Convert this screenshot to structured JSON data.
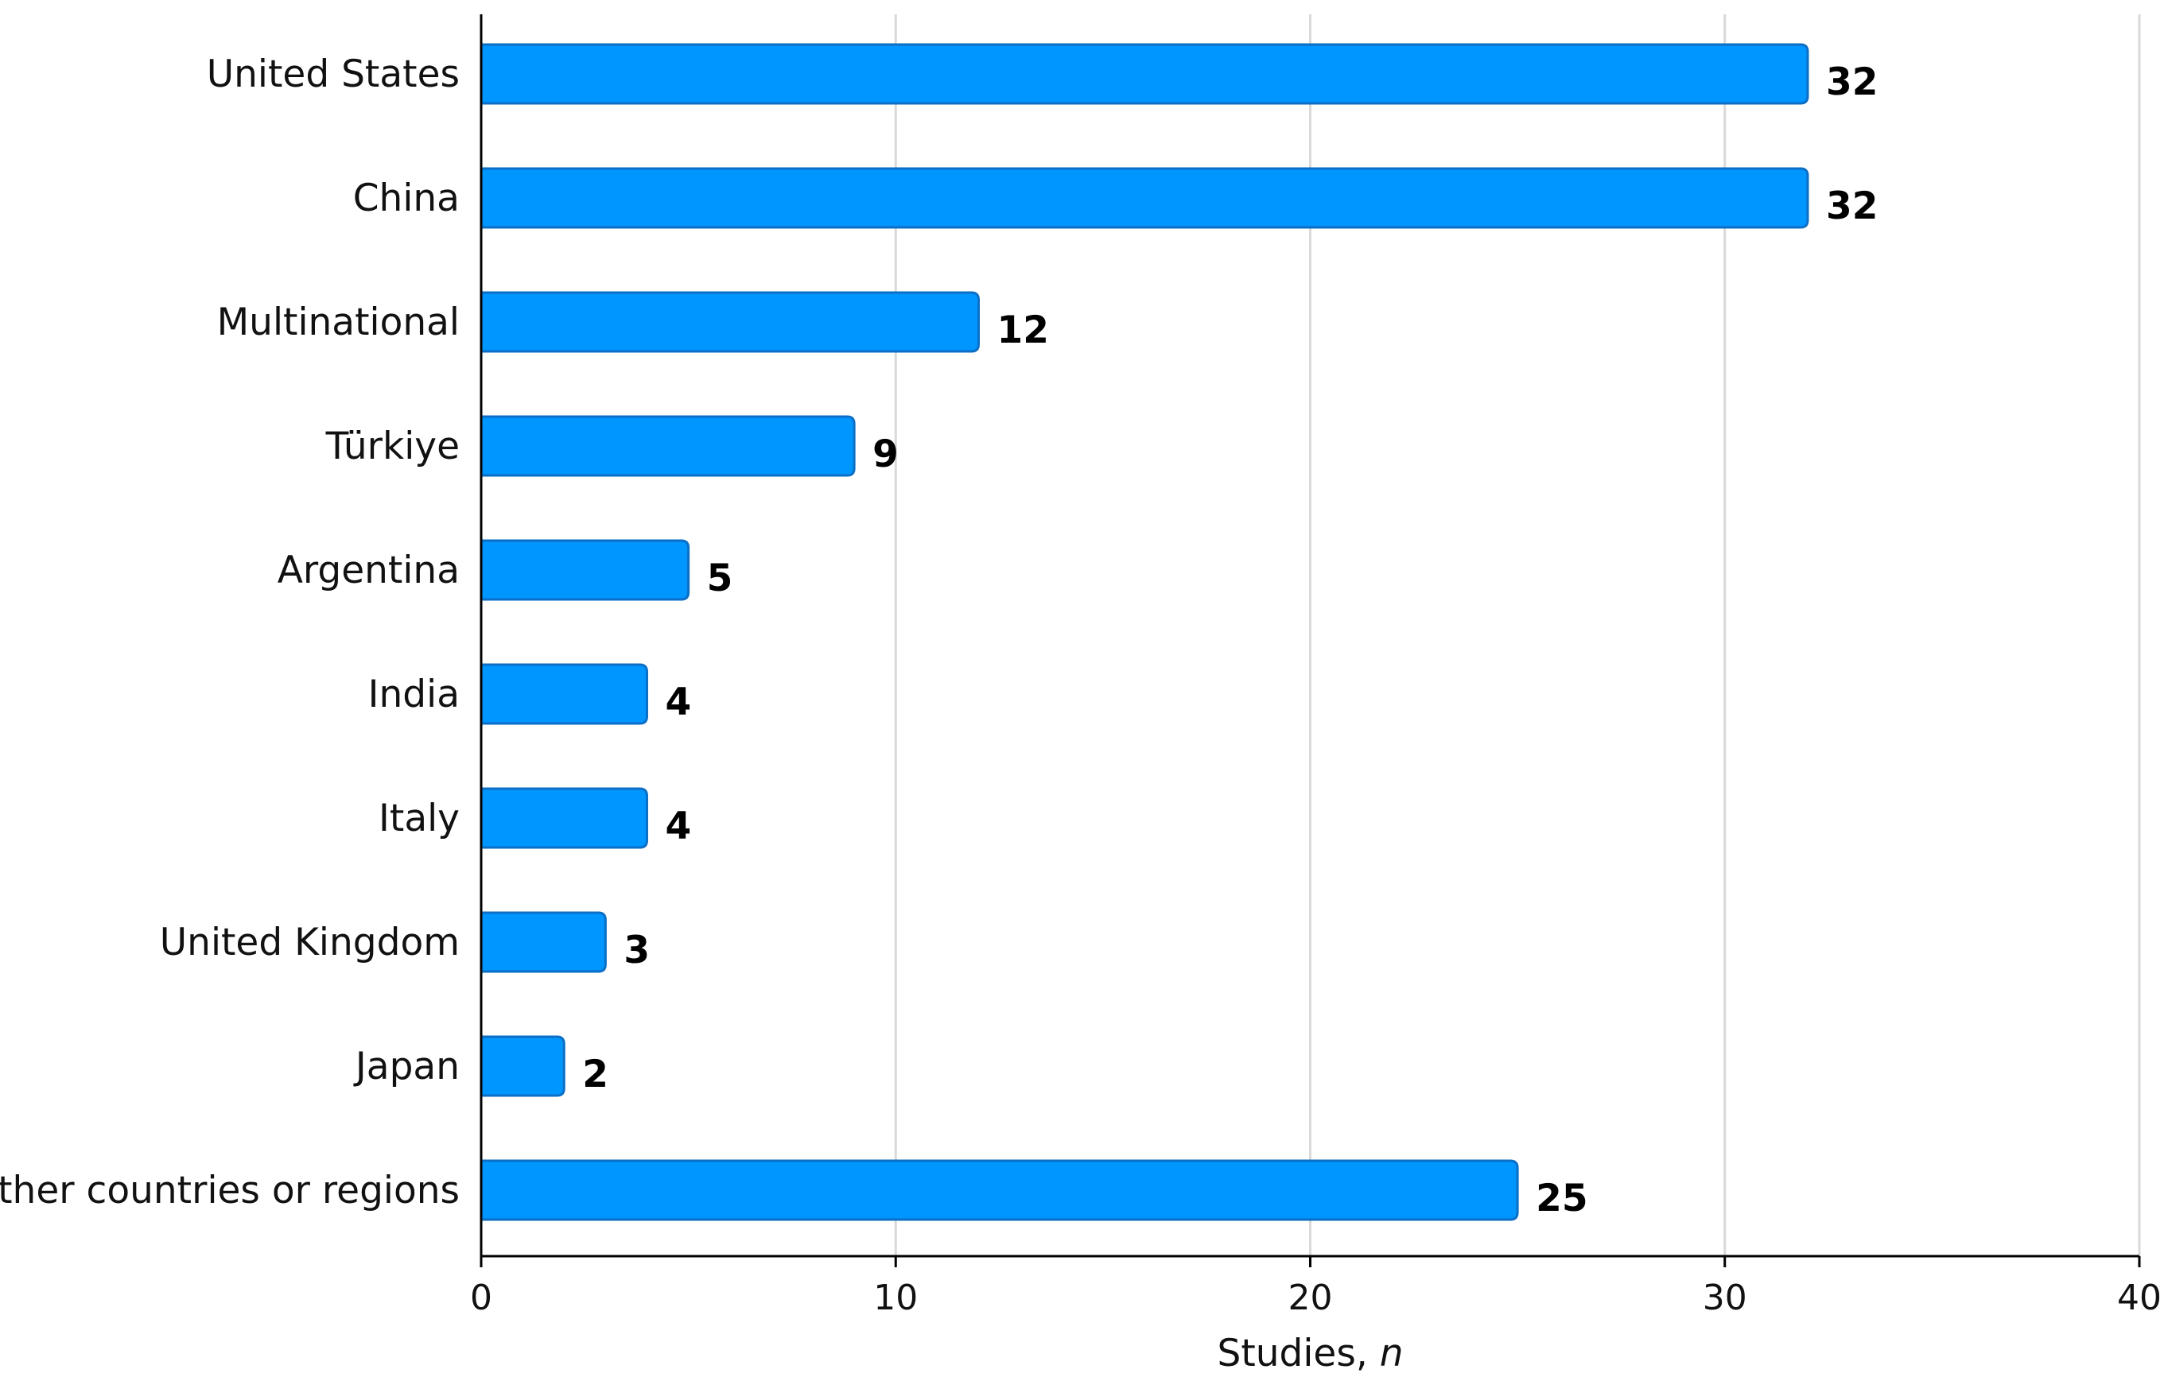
{
  "chart_data": {
    "type": "bar",
    "orientation": "horizontal",
    "categories": [
      "United States",
      "China",
      "Multinational",
      "Türkiye",
      "Argentina",
      "India",
      "Italy",
      "United Kingdom",
      "Japan",
      "Other countries or regions"
    ],
    "values": [
      32,
      32,
      12,
      9,
      5,
      4,
      4,
      3,
      2,
      25
    ],
    "value_labels": [
      "32",
      "32",
      "12",
      "9",
      "5",
      "4",
      "4",
      "3",
      "2",
      "25"
    ],
    "xlim": [
      0,
      40
    ],
    "x_ticks": [
      0,
      10,
      20,
      30,
      40
    ],
    "x_tick_labels": [
      "0",
      "10",
      "20",
      "30",
      "40"
    ],
    "xlabel_main": "Studies, ",
    "xlabel_italic": "n",
    "grid": true,
    "bar_color": "#0096ff",
    "bar_edge_color": "#0b6fc6"
  }
}
